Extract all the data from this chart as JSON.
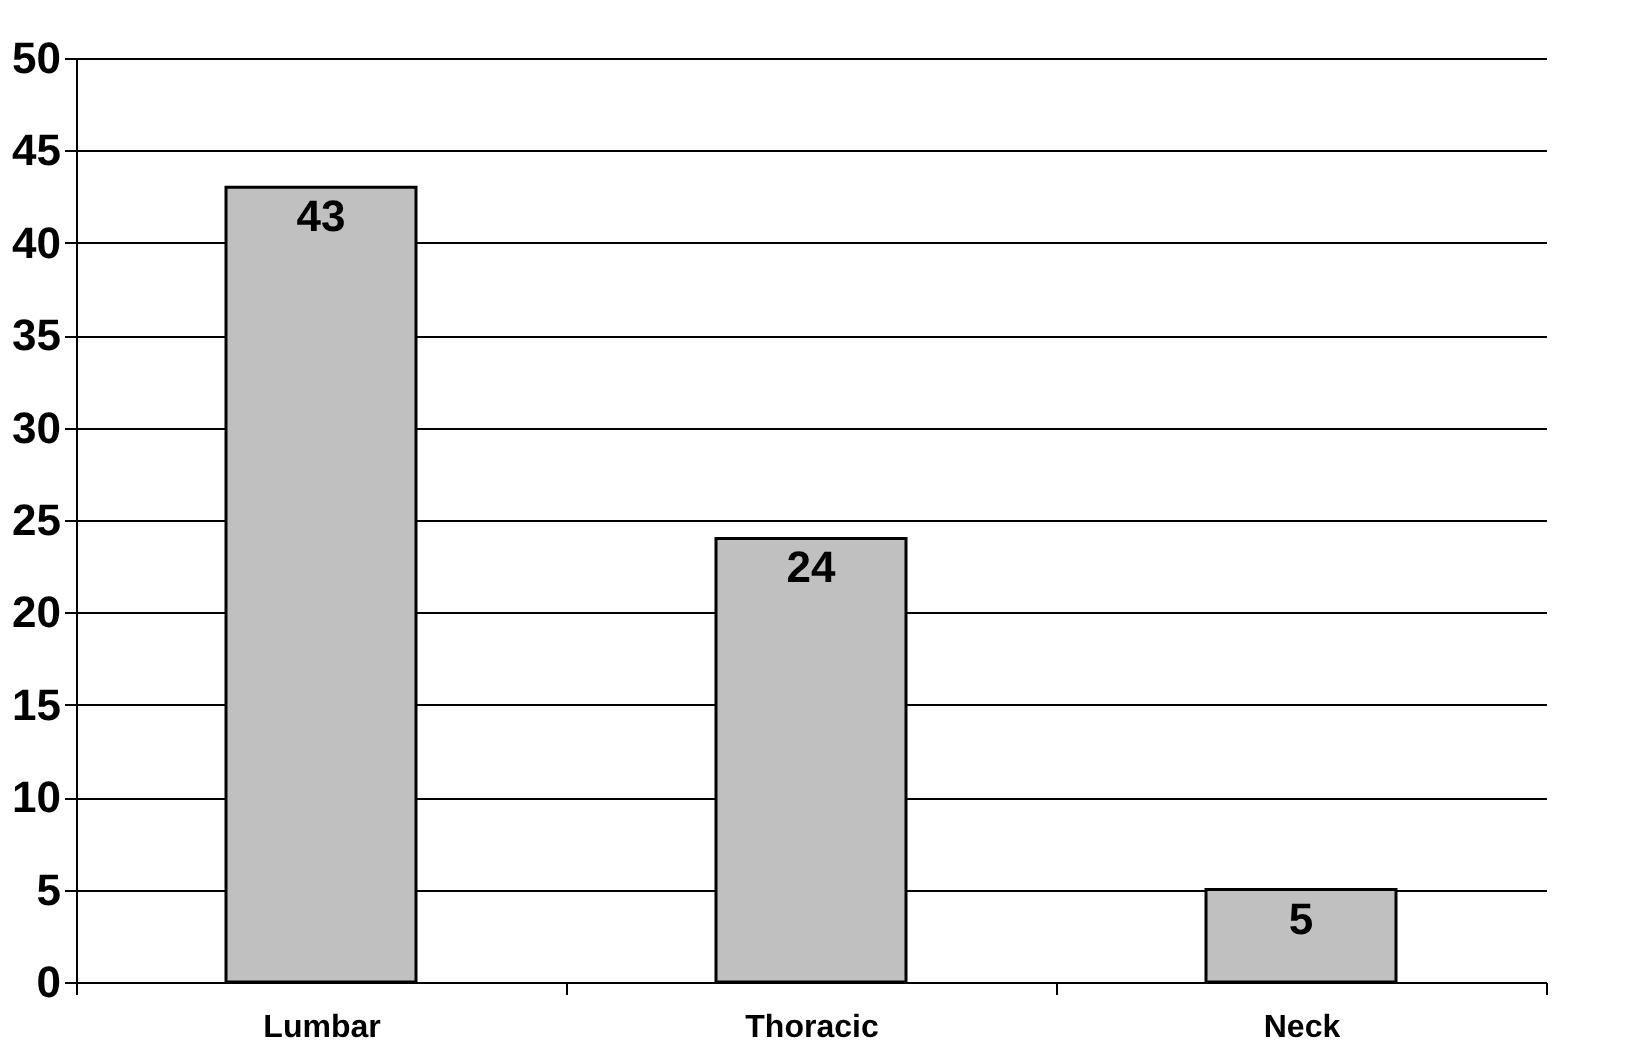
{
  "chart_data": {
    "type": "bar",
    "categories": [
      "Lumbar",
      "Thoracic",
      "Neck"
    ],
    "values": [
      43,
      24,
      5
    ],
    "color": "#c0c0c0",
    "ylim": [
      0,
      50
    ],
    "yticks": [
      0,
      5,
      10,
      15,
      20,
      25,
      30,
      35,
      40,
      45,
      50
    ],
    "grid": "y",
    "data_labels": true
  }
}
